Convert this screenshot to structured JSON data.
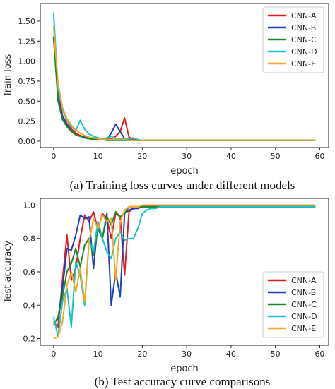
{
  "chart_data": [
    {
      "type": "line",
      "caption": "(a) Training loss curves under different models",
      "xlabel": "epoch",
      "ylabel": "Train loss",
      "xlim": [
        -3,
        62
      ],
      "ylim": [
        -0.08,
        1.72
      ],
      "xticks": [
        0,
        10,
        20,
        30,
        40,
        50,
        60
      ],
      "yticks": [
        0.0,
        0.25,
        0.5,
        0.75,
        1.0,
        1.25,
        1.5
      ],
      "ytick_labels": [
        "0.00",
        "0.25",
        "0.50",
        "0.75",
        "1.00",
        "1.25",
        "1.50"
      ],
      "legend_position": "top-right",
      "series": [
        {
          "name": "CNN-A",
          "color": "#e8191f",
          "x": [
            0,
            1,
            2,
            3,
            4,
            5,
            6,
            7,
            8,
            9,
            10,
            11,
            12,
            13,
            14,
            15,
            16,
            17,
            18,
            19,
            20,
            59
          ],
          "y": [
            1.28,
            0.62,
            0.32,
            0.22,
            0.15,
            0.1,
            0.07,
            0.05,
            0.04,
            0.03,
            0.02,
            0.02,
            0.02,
            0.03,
            0.06,
            0.12,
            0.29,
            0.05,
            0.02,
            0.01,
            0.01,
            0.01
          ]
        },
        {
          "name": "CNN-B",
          "color": "#1e3fbf",
          "x": [
            0,
            1,
            2,
            3,
            4,
            5,
            6,
            7,
            8,
            9,
            10,
            11,
            12,
            13,
            14,
            15,
            16,
            17,
            18,
            19,
            20,
            59
          ],
          "y": [
            1.3,
            0.55,
            0.3,
            0.2,
            0.13,
            0.08,
            0.06,
            0.05,
            0.03,
            0.03,
            0.02,
            0.02,
            0.02,
            0.1,
            0.21,
            0.12,
            0.03,
            0.02,
            0.01,
            0.01,
            0.01,
            0.01
          ]
        },
        {
          "name": "CNN-C",
          "color": "#1a8a2a",
          "x": [
            0,
            1,
            2,
            3,
            4,
            5,
            6,
            7,
            8,
            9,
            10,
            11,
            12,
            13,
            14,
            15,
            16,
            17,
            18,
            19,
            20,
            59
          ],
          "y": [
            1.31,
            0.5,
            0.27,
            0.18,
            0.12,
            0.08,
            0.06,
            0.04,
            0.03,
            0.02,
            0.02,
            0.02,
            0.01,
            0.01,
            0.01,
            0.01,
            0.01,
            0.01,
            0.01,
            0.01,
            0.01,
            0.01
          ]
        },
        {
          "name": "CNN-D",
          "color": "#19c3c8",
          "x": [
            0,
            1,
            2,
            3,
            4,
            5,
            6,
            7,
            8,
            9,
            10,
            11,
            12,
            13,
            14,
            15,
            16,
            17,
            18,
            19,
            20,
            59
          ],
          "y": [
            1.6,
            0.66,
            0.4,
            0.26,
            0.18,
            0.13,
            0.26,
            0.15,
            0.09,
            0.06,
            0.04,
            0.03,
            0.04,
            0.06,
            0.03,
            0.03,
            0.03,
            0.03,
            0.04,
            0.02,
            0.01,
            0.01
          ]
        },
        {
          "name": "CNN-E",
          "color": "#f5a822",
          "x": [
            0,
            1,
            2,
            3,
            4,
            5,
            6,
            7,
            8,
            9,
            10,
            11,
            12,
            13,
            14,
            15,
            16,
            17,
            18,
            19,
            20,
            59
          ],
          "y": [
            1.44,
            0.72,
            0.42,
            0.28,
            0.2,
            0.14,
            0.1,
            0.07,
            0.05,
            0.04,
            0.03,
            0.02,
            0.02,
            0.02,
            0.02,
            0.02,
            0.02,
            0.01,
            0.01,
            0.01,
            0.01,
            0.01
          ]
        }
      ]
    },
    {
      "type": "line",
      "caption": "(b) Test accuracy curve comparisons",
      "xlabel": "epoch",
      "ylabel": "Test accuracy",
      "xlim": [
        -3,
        62
      ],
      "ylim": [
        0.16,
        1.04
      ],
      "xticks": [
        0,
        10,
        20,
        30,
        40,
        50,
        60
      ],
      "yticks": [
        0.2,
        0.4,
        0.6,
        0.8,
        1.0
      ],
      "ytick_labels": [
        "0.2",
        "0.4",
        "0.6",
        "0.8",
        "1.0"
      ],
      "legend_position": "bottom-right",
      "series": [
        {
          "name": "CNN-A",
          "color": "#e8191f",
          "x": [
            0,
            1,
            2,
            3,
            4,
            5,
            6,
            7,
            8,
            9,
            10,
            11,
            12,
            13,
            14,
            15,
            16,
            17,
            18,
            19,
            20,
            59
          ],
          "y": [
            0.3,
            0.27,
            0.55,
            0.82,
            0.55,
            0.62,
            0.8,
            0.94,
            0.9,
            0.96,
            0.85,
            0.95,
            0.92,
            0.8,
            0.95,
            0.93,
            0.58,
            0.96,
            0.98,
            0.98,
            0.99,
            0.99
          ]
        },
        {
          "name": "CNN-B",
          "color": "#1e3fbf",
          "x": [
            0,
            1,
            2,
            3,
            4,
            5,
            6,
            7,
            8,
            9,
            10,
            11,
            12,
            13,
            14,
            15,
            16,
            17,
            18,
            19,
            20,
            59
          ],
          "y": [
            0.29,
            0.32,
            0.5,
            0.74,
            0.73,
            0.82,
            0.94,
            0.92,
            0.93,
            0.62,
            0.9,
            0.8,
            0.95,
            0.4,
            0.6,
            0.45,
            0.95,
            0.97,
            0.98,
            0.98,
            0.99,
            0.99
          ]
        },
        {
          "name": "CNN-C",
          "color": "#1a8a2a",
          "x": [
            0,
            1,
            2,
            3,
            4,
            5,
            6,
            7,
            8,
            9,
            10,
            11,
            12,
            13,
            14,
            15,
            16,
            17,
            18,
            19,
            20,
            59
          ],
          "y": [
            0.28,
            0.33,
            0.45,
            0.6,
            0.65,
            0.74,
            0.63,
            0.76,
            0.8,
            0.7,
            0.86,
            0.8,
            0.93,
            0.88,
            0.96,
            0.93,
            0.95,
            0.99,
            0.99,
            0.99,
            0.99,
            0.99
          ]
        },
        {
          "name": "CNN-D",
          "color": "#19c3c8",
          "x": [
            0,
            1,
            2,
            3,
            4,
            5,
            6,
            7,
            8,
            9,
            10,
            11,
            12,
            13,
            14,
            15,
            16,
            17,
            18,
            19,
            20,
            21,
            22,
            23,
            24,
            59
          ],
          "y": [
            0.33,
            0.21,
            0.42,
            0.5,
            0.27,
            0.66,
            0.58,
            0.4,
            0.79,
            0.72,
            0.9,
            0.8,
            0.72,
            0.68,
            0.8,
            0.84,
            0.79,
            0.8,
            0.8,
            0.86,
            0.95,
            0.97,
            0.98,
            0.98,
            0.99,
            0.99
          ]
        },
        {
          "name": "CNN-E",
          "color": "#f5a822",
          "x": [
            0,
            1,
            2,
            3,
            4,
            5,
            6,
            7,
            8,
            9,
            10,
            11,
            12,
            13,
            14,
            15,
            16,
            17,
            18,
            19,
            20,
            59
          ],
          "y": [
            0.2,
            0.21,
            0.3,
            0.52,
            0.6,
            0.48,
            0.62,
            0.42,
            0.78,
            0.92,
            0.86,
            0.94,
            0.9,
            0.92,
            0.55,
            0.9,
            0.97,
            0.99,
            0.99,
            0.99,
            1.0,
            1.0
          ]
        }
      ]
    }
  ]
}
